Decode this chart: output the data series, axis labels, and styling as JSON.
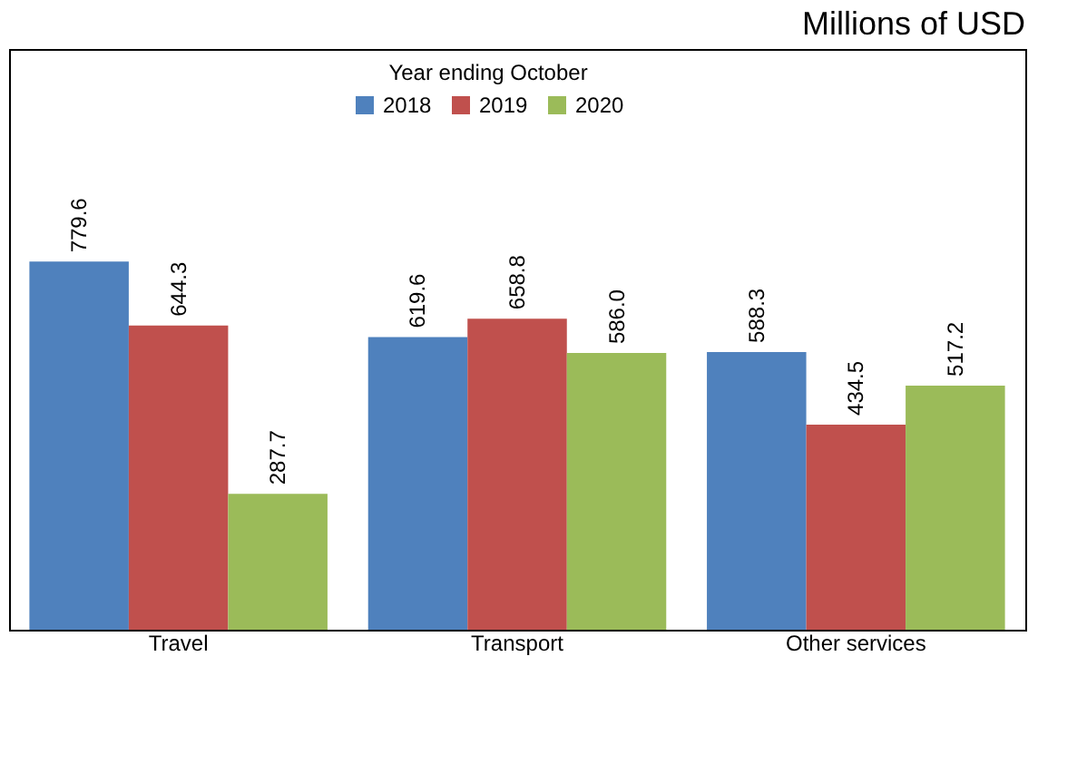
{
  "chart_data": {
    "type": "bar",
    "ylabel": "Millions of USD",
    "legend_title": "Year ending October",
    "categories": [
      "Travel",
      "Transport",
      "Other services"
    ],
    "series": [
      {
        "name": "2018",
        "color": "#4f81bd",
        "values": [
          779.6,
          619.6,
          588.3
        ],
        "value_labels": [
          "779.6",
          "619.6",
          "588.3"
        ]
      },
      {
        "name": "2019",
        "color": "#c0504d",
        "values": [
          644.3,
          658.8,
          434.5
        ],
        "value_labels": [
          "644.3",
          "658.8",
          "434.5"
        ]
      },
      {
        "name": "2020",
        "color": "#9bbb59",
        "values": [
          287.7,
          586.0,
          517.2
        ],
        "value_labels": [
          "287.7",
          "586.0",
          "517.2"
        ]
      }
    ],
    "ylim": [
      0,
      1230
    ],
    "tick_labels": "x",
    "legend": "top",
    "grid": false
  }
}
